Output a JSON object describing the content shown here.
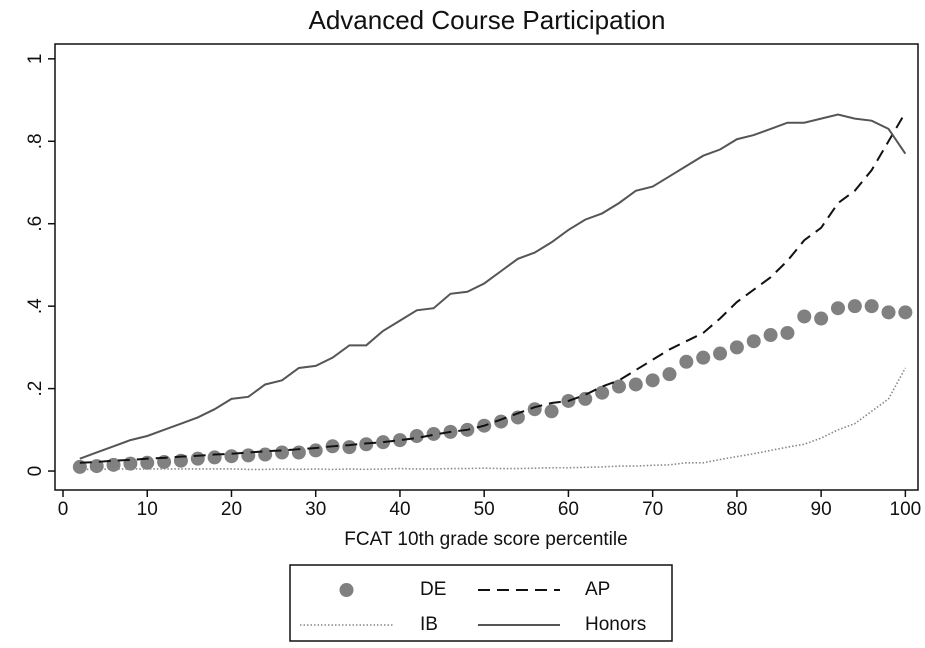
{
  "chart_data": {
    "type": "line",
    "title": "Advanced Course Participation",
    "x_label": "FCAT 10th grade score percentile",
    "x": [
      2,
      4,
      6,
      8,
      10,
      12,
      14,
      16,
      18,
      20,
      22,
      24,
      26,
      28,
      30,
      32,
      34,
      36,
      38,
      40,
      42,
      44,
      46,
      48,
      50,
      52,
      54,
      56,
      58,
      60,
      62,
      64,
      66,
      68,
      70,
      72,
      74,
      76,
      78,
      80,
      82,
      84,
      86,
      88,
      90,
      92,
      94,
      96,
      98,
      100
    ],
    "series": [
      {
        "name": "DE",
        "color": "#808080",
        "style": "markers",
        "values": [
          0.01,
          0.012,
          0.015,
          0.018,
          0.02,
          0.022,
          0.025,
          0.03,
          0.033,
          0.036,
          0.038,
          0.04,
          0.045,
          0.045,
          0.05,
          0.06,
          0.058,
          0.065,
          0.07,
          0.075,
          0.085,
          0.09,
          0.095,
          0.1,
          0.11,
          0.12,
          0.13,
          0.15,
          0.145,
          0.17,
          0.175,
          0.19,
          0.205,
          0.21,
          0.22,
          0.235,
          0.265,
          0.275,
          0.285,
          0.3,
          0.315,
          0.33,
          0.335,
          0.375,
          0.37,
          0.395,
          0.4,
          0.4,
          0.385,
          0.385
        ]
      },
      {
        "name": "AP",
        "color": "#111111",
        "style": "dashed",
        "values": [
          0.02,
          0.022,
          0.025,
          0.027,
          0.03,
          0.032,
          0.035,
          0.037,
          0.04,
          0.042,
          0.045,
          0.048,
          0.05,
          0.053,
          0.056,
          0.06,
          0.063,
          0.067,
          0.07,
          0.075,
          0.08,
          0.088,
          0.095,
          0.1,
          0.11,
          0.125,
          0.14,
          0.155,
          0.165,
          0.17,
          0.185,
          0.205,
          0.22,
          0.245,
          0.27,
          0.295,
          0.315,
          0.335,
          0.37,
          0.41,
          0.44,
          0.47,
          0.51,
          0.56,
          0.59,
          0.65,
          0.68,
          0.73,
          0.8,
          0.87
        ]
      },
      {
        "name": "IB",
        "color": "#888888",
        "style": "dotted",
        "values": [
          0.004,
          0.004,
          0.005,
          0.005,
          0.005,
          0.005,
          0.005,
          0.005,
          0.005,
          0.005,
          0.004,
          0.004,
          0.005,
          0.004,
          0.005,
          0.004,
          0.005,
          0.004,
          0.005,
          0.006,
          0.005,
          0.005,
          0.006,
          0.006,
          0.007,
          0.006,
          0.006,
          0.007,
          0.008,
          0.008,
          0.009,
          0.01,
          0.012,
          0.012,
          0.014,
          0.015,
          0.02,
          0.02,
          0.028,
          0.035,
          0.042,
          0.05,
          0.058,
          0.065,
          0.08,
          0.1,
          0.115,
          0.145,
          0.175,
          0.25
        ]
      },
      {
        "name": "Honors",
        "color": "#555555",
        "style": "solid",
        "values": [
          0.03,
          0.045,
          0.06,
          0.075,
          0.085,
          0.1,
          0.115,
          0.13,
          0.15,
          0.175,
          0.18,
          0.21,
          0.22,
          0.25,
          0.255,
          0.275,
          0.305,
          0.305,
          0.34,
          0.365,
          0.39,
          0.395,
          0.43,
          0.435,
          0.455,
          0.485,
          0.515,
          0.53,
          0.555,
          0.585,
          0.61,
          0.625,
          0.65,
          0.68,
          0.69,
          0.715,
          0.74,
          0.765,
          0.78,
          0.805,
          0.815,
          0.83,
          0.845,
          0.845,
          0.855,
          0.865,
          0.855,
          0.85,
          0.83,
          0.77
        ]
      }
    ],
    "xlim": [
      -0.95,
      101.5
    ],
    "xticks": [
      0,
      10,
      20,
      30,
      40,
      50,
      60,
      70,
      80,
      90,
      100
    ],
    "ylim": [
      -0.046,
      1.036
    ],
    "yticks": [
      0,
      {
        "value": 0.2,
        "label": ".2"
      },
      {
        "value": 0.4,
        "label": ".4"
      },
      {
        "value": 0.6,
        "label": ".6"
      },
      {
        "value": 0.8,
        "label": ".8"
      },
      1
    ],
    "grid": false,
    "legend": "bottom"
  }
}
